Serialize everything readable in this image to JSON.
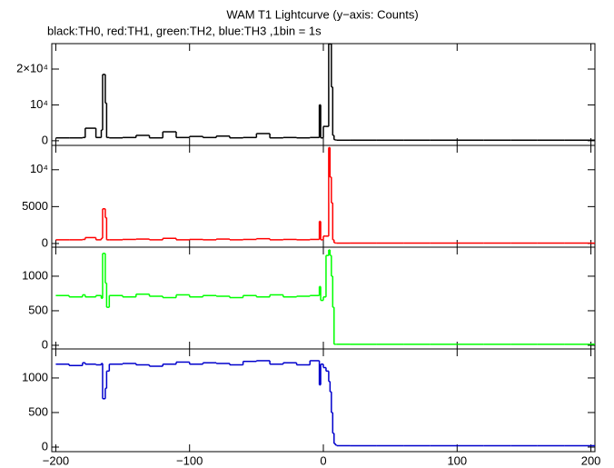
{
  "chart_data": [
    {
      "type": "line",
      "title": "WAM T1 Lightcurve (y−axis: Counts)",
      "subtitle": "black:TH0, red:TH1, green:TH2, blue:TH3 ,1bin = 1s",
      "color": "#000000",
      "x": [
        -200,
        -190,
        -180,
        -178,
        -170,
        -166,
        -165,
        -163,
        -162,
        -160,
        -150,
        -140,
        -130,
        -120,
        -110,
        -100,
        -90,
        -80,
        -70,
        -60,
        -50,
        -40,
        -30,
        -20,
        -10,
        -3,
        -2,
        0,
        2,
        4,
        5,
        6,
        7,
        8,
        9,
        10,
        20,
        40,
        60,
        80,
        100,
        120,
        140,
        160,
        180,
        200
      ],
      "values": [
        800,
        800,
        900,
        3500,
        900,
        3000,
        18500,
        10500,
        900,
        800,
        900,
        1500,
        800,
        2500,
        900,
        1200,
        900,
        1300,
        800,
        900,
        2000,
        800,
        900,
        800,
        900,
        10000,
        800,
        4000,
        4000,
        27000,
        27000,
        15000,
        1500,
        300,
        200,
        150,
        150,
        150,
        150,
        150,
        150,
        150,
        150,
        150,
        150,
        150
      ],
      "ylim": [
        -1300,
        27100
      ],
      "yticks": [
        0,
        {
          "value": 10000,
          "label": "10⁴"
        },
        {
          "value": 20000,
          "label": "2×10⁴"
        }
      ]
    },
    {
      "type": "line",
      "color": "#ff0000",
      "x": [
        -200,
        -190,
        -180,
        -178,
        -170,
        -166,
        -165,
        -163,
        -162,
        -160,
        -150,
        -140,
        -130,
        -120,
        -110,
        -100,
        -90,
        -80,
        -70,
        -60,
        -50,
        -40,
        -30,
        -20,
        -10,
        -3,
        -2,
        0,
        2,
        4,
        5,
        6,
        7,
        8,
        9,
        10,
        20,
        40,
        60,
        80,
        100,
        120,
        140,
        160,
        180,
        200
      ],
      "values": [
        500,
        500,
        550,
        800,
        500,
        700,
        4700,
        3500,
        500,
        500,
        550,
        600,
        500,
        700,
        500,
        550,
        500,
        600,
        500,
        550,
        650,
        500,
        550,
        500,
        550,
        3000,
        500,
        1000,
        1000,
        13000,
        9000,
        5500,
        500,
        100,
        60,
        50,
        50,
        50,
        50,
        50,
        50,
        50,
        50,
        50,
        50,
        50
      ],
      "ylim": [
        -500,
        13300
      ],
      "yticks": [
        0,
        5000,
        {
          "value": 10000,
          "label": "10⁴"
        }
      ]
    },
    {
      "type": "line",
      "color": "#00ff00",
      "x": [
        -200,
        -190,
        -180,
        -178,
        -170,
        -166,
        -165,
        -163,
        -162,
        -160,
        -150,
        -140,
        -130,
        -120,
        -110,
        -100,
        -90,
        -80,
        -70,
        -60,
        -50,
        -40,
        -30,
        -20,
        -10,
        -3,
        -2,
        0,
        2,
        4,
        5,
        6,
        7,
        8,
        9,
        10,
        20,
        40,
        60,
        80,
        100,
        120,
        140,
        160,
        180,
        200
      ],
      "values": [
        720,
        700,
        730,
        700,
        720,
        680,
        1330,
        900,
        550,
        720,
        700,
        740,
        710,
        690,
        730,
        700,
        720,
        710,
        690,
        720,
        700,
        730,
        700,
        710,
        720,
        850,
        650,
        700,
        1300,
        1380,
        1300,
        1000,
        550,
        15,
        15,
        15,
        15,
        15,
        15,
        15,
        15,
        15,
        15,
        15,
        15,
        15
      ],
      "ylim": [
        -53,
        1420
      ],
      "yticks": [
        0,
        500,
        1000
      ]
    },
    {
      "type": "line",
      "color": "#0000cc",
      "x": [
        -200,
        -190,
        -180,
        -178,
        -170,
        -166,
        -165,
        -163,
        -162,
        -160,
        -150,
        -140,
        -130,
        -120,
        -110,
        -100,
        -90,
        -80,
        -70,
        -60,
        -50,
        -40,
        -30,
        -20,
        -10,
        -3,
        -2,
        0,
        2,
        4,
        5,
        6,
        7,
        8,
        9,
        10,
        20,
        40,
        60,
        80,
        100,
        120,
        140,
        160,
        180,
        200
      ],
      "values": [
        1200,
        1180,
        1220,
        1200,
        1190,
        1210,
        700,
        850,
        1100,
        1200,
        1210,
        1190,
        1170,
        1200,
        1230,
        1200,
        1220,
        1210,
        1190,
        1240,
        1250,
        1200,
        1220,
        1190,
        1250,
        900,
        1200,
        1150,
        1100,
        950,
        800,
        500,
        200,
        50,
        30,
        20,
        20,
        20,
        20,
        20,
        20,
        20,
        20,
        20,
        20,
        20
      ],
      "ylim": [
        -66,
        1420
      ],
      "yticks": [
        0,
        500,
        1000
      ],
      "xlim": [
        -203,
        203
      ],
      "xticks": [
        {
          "value": -200,
          "label": "−200"
        },
        {
          "value": -100,
          "label": "−100"
        },
        0,
        100,
        200
      ]
    }
  ]
}
